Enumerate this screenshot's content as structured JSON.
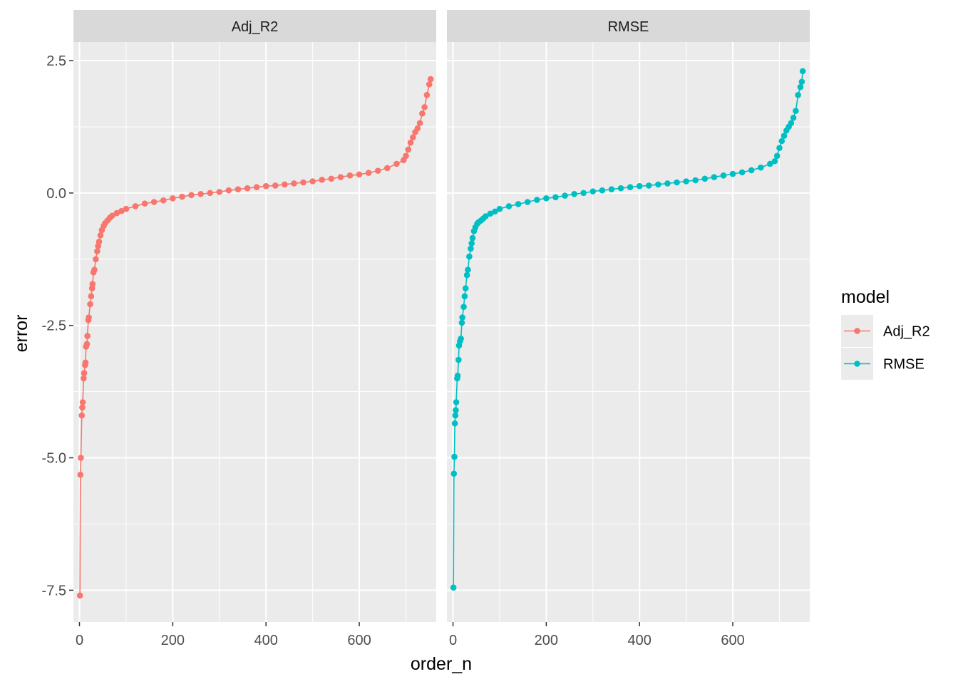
{
  "chart_data": {
    "type": "line",
    "xlabel": "order_n",
    "ylabel": "error",
    "xlim": [
      -13,
      765
    ],
    "ylim": [
      -8.1,
      2.85
    ],
    "x_ticks": [
      0,
      200,
      400,
      600
    ],
    "x_tick_labels": [
      "0",
      "200",
      "400",
      "600"
    ],
    "y_ticks": [
      2.5,
      0.0,
      -2.5,
      -5.0,
      -7.5
    ],
    "y_tick_labels": [
      "2.5",
      "0.0",
      "-2.5",
      "-5.0",
      "-7.5"
    ],
    "grid": true,
    "legend": {
      "title": "model",
      "position": "right",
      "entries": [
        {
          "label": "Adj_R2",
          "color": "#F8766D"
        },
        {
          "label": "RMSE",
          "color": "#00BFC4"
        }
      ]
    },
    "panels": [
      {
        "strip": "Adj_R2",
        "series": [
          {
            "name": "Adj_R2",
            "color": "#F8766D",
            "points": [
              [
                1,
                -7.6
              ],
              [
                2,
                -5.32
              ],
              [
                3,
                -5.0
              ],
              [
                5,
                -4.2
              ],
              [
                6,
                -4.05
              ],
              [
                7,
                -3.95
              ],
              [
                9,
                -3.5
              ],
              [
                10,
                -3.4
              ],
              [
                12,
                -3.25
              ],
              [
                13,
                -3.2
              ],
              [
                14,
                -2.9
              ],
              [
                16,
                -2.85
              ],
              [
                17,
                -2.7
              ],
              [
                19,
                -2.4
              ],
              [
                20,
                -2.35
              ],
              [
                23,
                -2.1
              ],
              [
                25,
                -1.95
              ],
              [
                27,
                -1.8
              ],
              [
                28,
                -1.72
              ],
              [
                30,
                -1.5
              ],
              [
                32,
                -1.45
              ],
              [
                35,
                -1.25
              ],
              [
                38,
                -1.1
              ],
              [
                40,
                -1.0
              ],
              [
                42,
                -0.92
              ],
              [
                45,
                -0.8
              ],
              [
                48,
                -0.7
              ],
              [
                52,
                -0.62
              ],
              [
                55,
                -0.57
              ],
              [
                60,
                -0.52
              ],
              [
                65,
                -0.47
              ],
              [
                70,
                -0.43
              ],
              [
                80,
                -0.38
              ],
              [
                90,
                -0.34
              ],
              [
                100,
                -0.3
              ],
              [
                120,
                -0.25
              ],
              [
                140,
                -0.2
              ],
              [
                160,
                -0.17
              ],
              [
                180,
                -0.14
              ],
              [
                200,
                -0.1
              ],
              [
                220,
                -0.07
              ],
              [
                240,
                -0.04
              ],
              [
                260,
                -0.02
              ],
              [
                280,
                0.0
              ],
              [
                300,
                0.02
              ],
              [
                320,
                0.05
              ],
              [
                340,
                0.07
              ],
              [
                360,
                0.09
              ],
              [
                380,
                0.11
              ],
              [
                400,
                0.13
              ],
              [
                420,
                0.14
              ],
              [
                440,
                0.16
              ],
              [
                460,
                0.18
              ],
              [
                480,
                0.2
              ],
              [
                500,
                0.22
              ],
              [
                520,
                0.25
              ],
              [
                540,
                0.27
              ],
              [
                560,
                0.3
              ],
              [
                580,
                0.33
              ],
              [
                600,
                0.35
              ],
              [
                620,
                0.38
              ],
              [
                640,
                0.42
              ],
              [
                660,
                0.47
              ],
              [
                680,
                0.55
              ],
              [
                695,
                0.62
              ],
              [
                700,
                0.7
              ],
              [
                705,
                0.82
              ],
              [
                710,
                0.95
              ],
              [
                715,
                1.05
              ],
              [
                720,
                1.15
              ],
              [
                725,
                1.22
              ],
              [
                730,
                1.32
              ],
              [
                735,
                1.5
              ],
              [
                740,
                1.62
              ],
              [
                745,
                1.85
              ],
              [
                750,
                2.05
              ],
              [
                753,
                2.15
              ]
            ]
          }
        ]
      },
      {
        "strip": "RMSE",
        "series": [
          {
            "name": "RMSE",
            "color": "#00BFC4",
            "points": [
              [
                1,
                -7.45
              ],
              [
                2,
                -5.3
              ],
              [
                3,
                -4.98
              ],
              [
                4,
                -4.35
              ],
              [
                5,
                -4.2
              ],
              [
                6,
                -4.1
              ],
              [
                7,
                -3.95
              ],
              [
                9,
                -3.5
              ],
              [
                10,
                -3.45
              ],
              [
                12,
                -3.15
              ],
              [
                13,
                -2.88
              ],
              [
                15,
                -2.8
              ],
              [
                17,
                -2.75
              ],
              [
                19,
                -2.45
              ],
              [
                20,
                -2.35
              ],
              [
                23,
                -2.15
              ],
              [
                25,
                -1.95
              ],
              [
                27,
                -1.8
              ],
              [
                30,
                -1.55
              ],
              [
                32,
                -1.45
              ],
              [
                35,
                -1.2
              ],
              [
                38,
                -1.05
              ],
              [
                40,
                -0.95
              ],
              [
                42,
                -0.85
              ],
              [
                45,
                -0.72
              ],
              [
                48,
                -0.65
              ],
              [
                52,
                -0.58
              ],
              [
                55,
                -0.55
              ],
              [
                60,
                -0.52
              ],
              [
                65,
                -0.48
              ],
              [
                70,
                -0.44
              ],
              [
                80,
                -0.39
              ],
              [
                90,
                -0.35
              ],
              [
                100,
                -0.3
              ],
              [
                120,
                -0.25
              ],
              [
                140,
                -0.21
              ],
              [
                160,
                -0.17
              ],
              [
                180,
                -0.13
              ],
              [
                200,
                -0.1
              ],
              [
                220,
                -0.08
              ],
              [
                240,
                -0.05
              ],
              [
                260,
                -0.02
              ],
              [
                280,
                0.0
              ],
              [
                300,
                0.03
              ],
              [
                320,
                0.05
              ],
              [
                340,
                0.07
              ],
              [
                360,
                0.09
              ],
              [
                380,
                0.11
              ],
              [
                400,
                0.13
              ],
              [
                420,
                0.14
              ],
              [
                440,
                0.16
              ],
              [
                460,
                0.18
              ],
              [
                480,
                0.2
              ],
              [
                500,
                0.22
              ],
              [
                520,
                0.24
              ],
              [
                540,
                0.27
              ],
              [
                560,
                0.3
              ],
              [
                580,
                0.33
              ],
              [
                600,
                0.36
              ],
              [
                620,
                0.39
              ],
              [
                640,
                0.43
              ],
              [
                660,
                0.48
              ],
              [
                680,
                0.55
              ],
              [
                690,
                0.6
              ],
              [
                695,
                0.7
              ],
              [
                700,
                0.85
              ],
              [
                705,
                0.98
              ],
              [
                710,
                1.08
              ],
              [
                715,
                1.18
              ],
              [
                720,
                1.25
              ],
              [
                725,
                1.32
              ],
              [
                730,
                1.42
              ],
              [
                735,
                1.55
              ],
              [
                740,
                1.85
              ],
              [
                745,
                2.0
              ],
              [
                748,
                2.1
              ],
              [
                750,
                2.3
              ]
            ]
          }
        ]
      }
    ]
  }
}
